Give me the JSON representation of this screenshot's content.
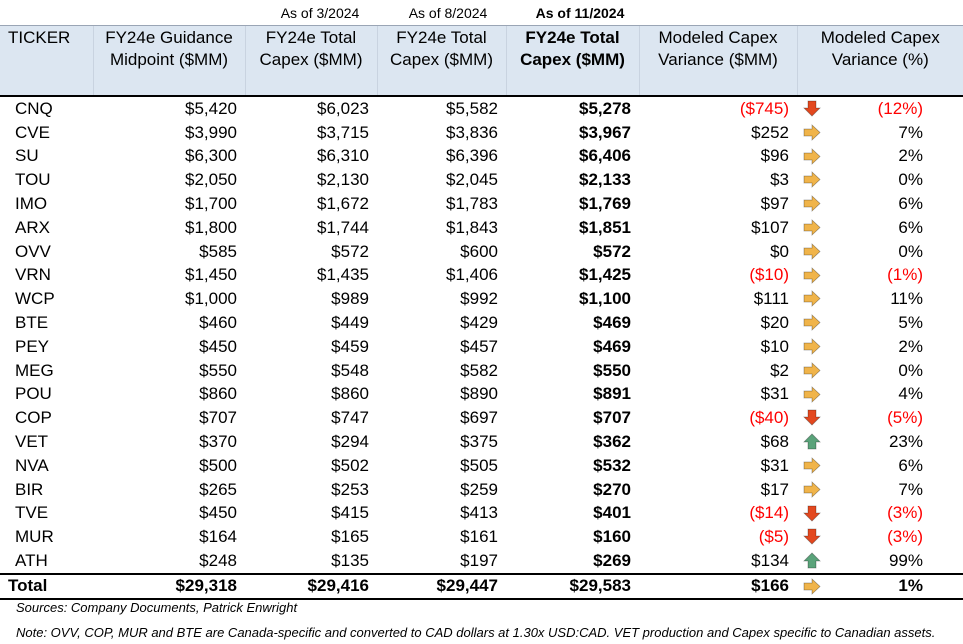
{
  "column_notes": {
    "col3": "As of 3/2024",
    "col4": "As of 8/2024",
    "col5": "As of 11/2024"
  },
  "headers": {
    "ticker": "TICKER",
    "guidance": "FY24e Guidance Midpoint ($MM)",
    "capex_mar": "FY24e Total Capex ($MM)",
    "capex_aug": "FY24e Total Capex ($MM)",
    "capex_nov": "FY24e Total Capex ($MM)",
    "variance_mm": "Modeled Capex Variance ($MM)",
    "variance_pct": "Modeled Capex Variance (%)"
  },
  "rows": [
    {
      "ticker": "CNQ",
      "guidance": "$5,420",
      "mar": "$6,023",
      "aug": "$5,582",
      "nov": "$5,278",
      "var_mm": "($745)",
      "arrow": "down",
      "var_pct": "(12%)",
      "neg": true
    },
    {
      "ticker": "CVE",
      "guidance": "$3,990",
      "mar": "$3,715",
      "aug": "$3,836",
      "nov": "$3,967",
      "var_mm": "$252",
      "arrow": "right",
      "var_pct": "7%",
      "neg": false
    },
    {
      "ticker": "SU",
      "guidance": "$6,300",
      "mar": "$6,310",
      "aug": "$6,396",
      "nov": "$6,406",
      "var_mm": "$96",
      "arrow": "right",
      "var_pct": "2%",
      "neg": false
    },
    {
      "ticker": "TOU",
      "guidance": "$2,050",
      "mar": "$2,130",
      "aug": "$2,045",
      "nov": "$2,133",
      "var_mm": "$3",
      "arrow": "right",
      "var_pct": "0%",
      "neg": false
    },
    {
      "ticker": "IMO",
      "guidance": "$1,700",
      "mar": "$1,672",
      "aug": "$1,783",
      "nov": "$1,769",
      "var_mm": "$97",
      "arrow": "right",
      "var_pct": "6%",
      "neg": false
    },
    {
      "ticker": "ARX",
      "guidance": "$1,800",
      "mar": "$1,744",
      "aug": "$1,843",
      "nov": "$1,851",
      "var_mm": "$107",
      "arrow": "right",
      "var_pct": "6%",
      "neg": false
    },
    {
      "ticker": "OVV",
      "guidance": "$585",
      "mar": "$572",
      "aug": "$600",
      "nov": "$572",
      "var_mm": "$0",
      "arrow": "right",
      "var_pct": "0%",
      "neg": false
    },
    {
      "ticker": "VRN",
      "guidance": "$1,450",
      "mar": "$1,435",
      "aug": "$1,406",
      "nov": "$1,425",
      "var_mm": "($10)",
      "arrow": "right",
      "var_pct": "(1%)",
      "neg": true
    },
    {
      "ticker": "WCP",
      "guidance": "$1,000",
      "mar": "$989",
      "aug": "$992",
      "nov": "$1,100",
      "var_mm": "$111",
      "arrow": "right",
      "var_pct": "11%",
      "neg": false
    },
    {
      "ticker": "BTE",
      "guidance": "$460",
      "mar": "$449",
      "aug": "$429",
      "nov": "$469",
      "var_mm": "$20",
      "arrow": "right",
      "var_pct": "5%",
      "neg": false
    },
    {
      "ticker": "PEY",
      "guidance": "$450",
      "mar": "$459",
      "aug": "$457",
      "nov": "$469",
      "var_mm": "$10",
      "arrow": "right",
      "var_pct": "2%",
      "neg": false
    },
    {
      "ticker": "MEG",
      "guidance": "$550",
      "mar": "$548",
      "aug": "$582",
      "nov": "$550",
      "var_mm": "$2",
      "arrow": "right",
      "var_pct": "0%",
      "neg": false
    },
    {
      "ticker": "POU",
      "guidance": "$860",
      "mar": "$860",
      "aug": "$890",
      "nov": "$891",
      "var_mm": "$31",
      "arrow": "right",
      "var_pct": "4%",
      "neg": false
    },
    {
      "ticker": "COP",
      "guidance": "$707",
      "mar": "$747",
      "aug": "$697",
      "nov": "$707",
      "var_mm": "($40)",
      "arrow": "down",
      "var_pct": "(5%)",
      "neg": true
    },
    {
      "ticker": "VET",
      "guidance": "$370",
      "mar": "$294",
      "aug": "$375",
      "nov": "$362",
      "var_mm": "$68",
      "arrow": "up",
      "var_pct": "23%",
      "neg": false
    },
    {
      "ticker": "NVA",
      "guidance": "$500",
      "mar": "$502",
      "aug": "$505",
      "nov": "$532",
      "var_mm": "$31",
      "arrow": "right",
      "var_pct": "6%",
      "neg": false
    },
    {
      "ticker": "BIR",
      "guidance": "$265",
      "mar": "$253",
      "aug": "$259",
      "nov": "$270",
      "var_mm": "$17",
      "arrow": "right",
      "var_pct": "7%",
      "neg": false
    },
    {
      "ticker": "TVE",
      "guidance": "$450",
      "mar": "$415",
      "aug": "$413",
      "nov": "$401",
      "var_mm": "($14)",
      "arrow": "down",
      "var_pct": "(3%)",
      "neg": true
    },
    {
      "ticker": "MUR",
      "guidance": "$164",
      "mar": "$165",
      "aug": "$161",
      "nov": "$160",
      "var_mm": "($5)",
      "arrow": "down",
      "var_pct": "(3%)",
      "neg": true
    },
    {
      "ticker": "ATH",
      "guidance": "$248",
      "mar": "$135",
      "aug": "$197",
      "nov": "$269",
      "var_mm": "$134",
      "arrow": "up",
      "var_pct": "99%",
      "neg": false
    }
  ],
  "total": {
    "label": "Total",
    "guidance": "$29,318",
    "mar": "$29,416",
    "aug": "$29,447",
    "nov": "$29,583",
    "var_mm": "$166",
    "arrow": "right",
    "var_pct": "1%"
  },
  "sources": "Sources: Company Documents, Patrick Enwright",
  "note": "Note: OVV, COP, MUR and BTE are Canada-specific and converted to CAD dollars at 1.30x USD:CAD. VET production and Capex specific to Canadian assets.",
  "icons": {
    "down": "arrow-down-icon",
    "right": "arrow-right-icon",
    "up": "arrow-up-icon"
  },
  "colors": {
    "header_bg": "#dce6f1",
    "negative": "#ff0000",
    "arrow_down": "#e3481f",
    "arrow_right": "#f0b44a",
    "arrow_up": "#5aa37a"
  }
}
